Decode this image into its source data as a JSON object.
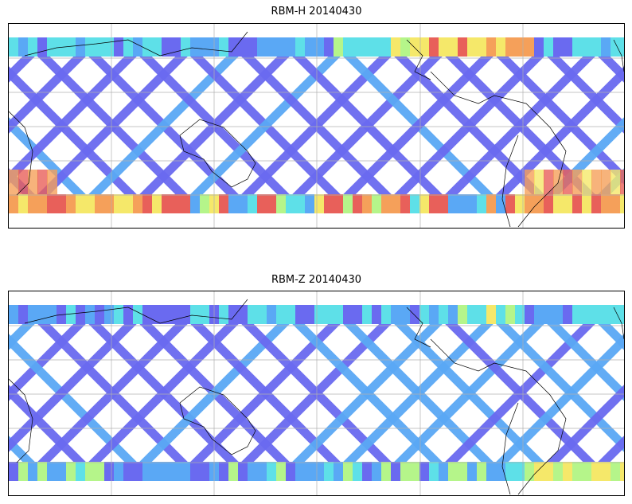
{
  "panels": [
    {
      "title": "RBM-H 20140430",
      "scheme": "high"
    },
    {
      "title": "RBM-Z 20140430",
      "scheme": "low"
    }
  ],
  "colors": {
    "swath_low": "#6a6af0",
    "swath_mid": "#5aa8f5",
    "cyan": "#5ee0e8",
    "green": "#b5f58a",
    "yellow": "#f5e86a",
    "orange": "#f5a05a",
    "red": "#e8605a",
    "grid": "#b0b0b0",
    "coast": "#000000"
  }
}
